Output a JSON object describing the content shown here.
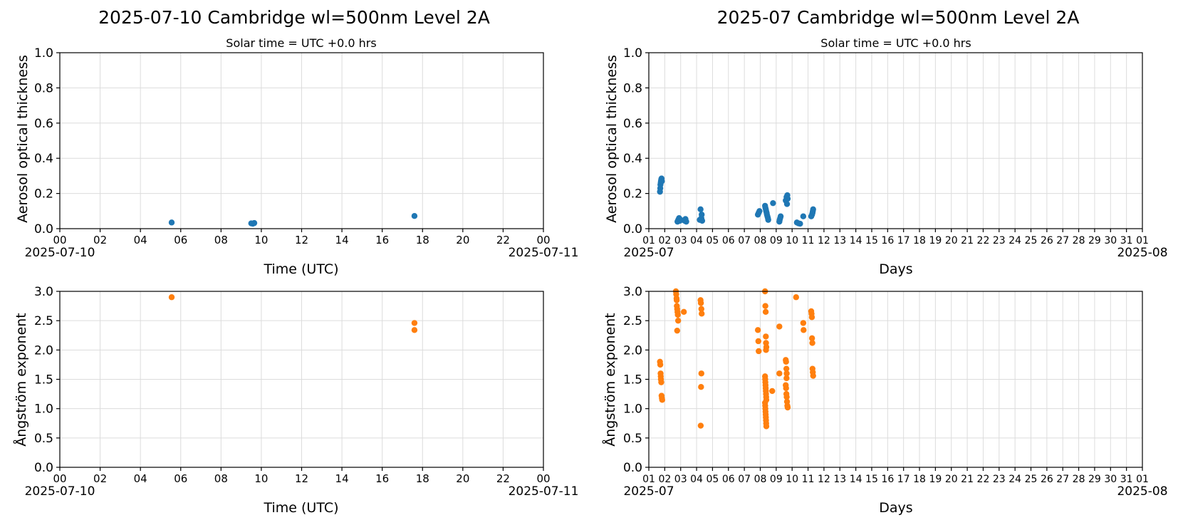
{
  "colors": {
    "aot": "#1f77b4",
    "angstrom": "#ff7f0e",
    "grid": "#dcdcdc"
  },
  "chart_data": [
    {
      "id": "day-aot",
      "type": "scatter",
      "title": "2025-07-10  Cambridge  wl=500nm  Level 2A",
      "subtitle": "Solar time = UTC +0.0 hrs",
      "xlabel": "Time (UTC)",
      "ylabel": "Aerosol optical thickness",
      "xlim": [
        0,
        24
      ],
      "ylim": [
        0,
        1.0
      ],
      "yticks": [
        "0.0",
        "0.2",
        "0.4",
        "0.6",
        "0.8",
        "1.0"
      ],
      "xticks": [
        {
          "value": 0,
          "label": "00",
          "sub": "2025-07-10"
        },
        {
          "value": 2,
          "label": "02"
        },
        {
          "value": 4,
          "label": "04"
        },
        {
          "value": 6,
          "label": "06"
        },
        {
          "value": 8,
          "label": "08"
        },
        {
          "value": 10,
          "label": "10"
        },
        {
          "value": 12,
          "label": "12"
        },
        {
          "value": 14,
          "label": "14"
        },
        {
          "value": 16,
          "label": "16"
        },
        {
          "value": 18,
          "label": "18"
        },
        {
          "value": 20,
          "label": "20"
        },
        {
          "value": 22,
          "label": "22"
        },
        {
          "value": 24,
          "label": "00",
          "sub": "2025-07-11"
        }
      ],
      "grid": true,
      "series": [
        {
          "color": "aot",
          "points": [
            [
              5.55,
              0.035
            ],
            [
              9.5,
              0.03
            ],
            [
              9.58,
              0.028
            ],
            [
              9.65,
              0.032
            ],
            [
              17.6,
              0.072
            ]
          ]
        }
      ]
    },
    {
      "id": "month-aot",
      "type": "scatter",
      "title": "2025-07  Cambridge  wl=500nm  Level 2A",
      "subtitle": "Solar time = UTC +0.0 hrs",
      "xlabel": "Days",
      "ylabel": "Aerosol optical thickness",
      "xlim": [
        1,
        32
      ],
      "ylim": [
        0,
        1.0
      ],
      "yticks": [
        "0.0",
        "0.2",
        "0.4",
        "0.6",
        "0.8",
        "1.0"
      ],
      "xticks": [
        {
          "value": 1,
          "label": "01",
          "sub": "2025-07"
        },
        {
          "value": 2,
          "label": "02"
        },
        {
          "value": 3,
          "label": "03"
        },
        {
          "value": 4,
          "label": "04"
        },
        {
          "value": 5,
          "label": "05"
        },
        {
          "value": 6,
          "label": "06"
        },
        {
          "value": 7,
          "label": "07"
        },
        {
          "value": 8,
          "label": "08"
        },
        {
          "value": 9,
          "label": "09"
        },
        {
          "value": 10,
          "label": "10"
        },
        {
          "value": 11,
          "label": "11"
        },
        {
          "value": 12,
          "label": "12"
        },
        {
          "value": 13,
          "label": "13"
        },
        {
          "value": 14,
          "label": "14"
        },
        {
          "value": 15,
          "label": "15"
        },
        {
          "value": 16,
          "label": "16"
        },
        {
          "value": 17,
          "label": "17"
        },
        {
          "value": 18,
          "label": "18"
        },
        {
          "value": 19,
          "label": "19"
        },
        {
          "value": 20,
          "label": "20"
        },
        {
          "value": 21,
          "label": "21"
        },
        {
          "value": 22,
          "label": "22"
        },
        {
          "value": 23,
          "label": "23"
        },
        {
          "value": 24,
          "label": "24"
        },
        {
          "value": 25,
          "label": "25"
        },
        {
          "value": 26,
          "label": "26"
        },
        {
          "value": 27,
          "label": "27"
        },
        {
          "value": 28,
          "label": "28"
        },
        {
          "value": 29,
          "label": "29"
        },
        {
          "value": 30,
          "label": "30"
        },
        {
          "value": 31,
          "label": "31"
        },
        {
          "value": 32,
          "label": "01",
          "sub": "2025-08"
        }
      ],
      "grid": true,
      "series": [
        {
          "color": "aot",
          "points": [
            [
              1.7,
              0.21
            ],
            [
              1.72,
              0.23
            ],
            [
              1.73,
              0.25
            ],
            [
              1.75,
              0.26
            ],
            [
              1.76,
              0.27
            ],
            [
              1.78,
              0.28
            ],
            [
              1.8,
              0.285
            ],
            [
              1.82,
              0.27
            ],
            [
              2.8,
              0.04
            ],
            [
              2.85,
              0.05
            ],
            [
              2.9,
              0.06
            ],
            [
              2.95,
              0.045
            ],
            [
              3.0,
              0.05
            ],
            [
              3.25,
              0.045
            ],
            [
              3.3,
              0.055
            ],
            [
              3.35,
              0.04
            ],
            [
              4.2,
              0.05
            ],
            [
              4.25,
              0.11
            ],
            [
              4.3,
              0.06
            ],
            [
              4.32,
              0.08
            ],
            [
              4.35,
              0.045
            ],
            [
              7.85,
              0.08
            ],
            [
              7.9,
              0.09
            ],
            [
              7.95,
              0.1
            ],
            [
              8.3,
              0.13
            ],
            [
              8.32,
              0.12
            ],
            [
              8.35,
              0.11
            ],
            [
              8.37,
              0.1
            ],
            [
              8.4,
              0.09
            ],
            [
              8.42,
              0.08
            ],
            [
              8.45,
              0.07
            ],
            [
              8.48,
              0.06
            ],
            [
              8.5,
              0.05
            ],
            [
              8.8,
              0.145
            ],
            [
              9.2,
              0.04
            ],
            [
              9.22,
              0.05
            ],
            [
              9.25,
              0.06
            ],
            [
              9.28,
              0.07
            ],
            [
              9.6,
              0.16
            ],
            [
              9.65,
              0.18
            ],
            [
              9.7,
              0.19
            ],
            [
              9.72,
              0.17
            ],
            [
              9.68,
              0.14
            ],
            [
              10.3,
              0.035
            ],
            [
              10.4,
              0.03
            ],
            [
              10.5,
              0.028
            ],
            [
              10.7,
              0.07
            ],
            [
              11.2,
              0.07
            ],
            [
              11.25,
              0.08
            ],
            [
              11.28,
              0.09
            ],
            [
              11.3,
              0.1
            ],
            [
              11.32,
              0.11
            ]
          ]
        }
      ]
    },
    {
      "id": "day-angstrom",
      "type": "scatter",
      "xlabel": "Time (UTC)",
      "ylabel": "Ångström exponent",
      "xlim": [
        0,
        24
      ],
      "ylim": [
        0,
        3.0
      ],
      "yticks": [
        "0.0",
        "0.5",
        "1.0",
        "1.5",
        "2.0",
        "2.5",
        "3.0"
      ],
      "xticks": [
        {
          "value": 0,
          "label": "00",
          "sub": "2025-07-10"
        },
        {
          "value": 2,
          "label": "02"
        },
        {
          "value": 4,
          "label": "04"
        },
        {
          "value": 6,
          "label": "06"
        },
        {
          "value": 8,
          "label": "08"
        },
        {
          "value": 10,
          "label": "10"
        },
        {
          "value": 12,
          "label": "12"
        },
        {
          "value": 14,
          "label": "14"
        },
        {
          "value": 16,
          "label": "16"
        },
        {
          "value": 18,
          "label": "18"
        },
        {
          "value": 20,
          "label": "20"
        },
        {
          "value": 22,
          "label": "22"
        },
        {
          "value": 24,
          "label": "00",
          "sub": "2025-07-11"
        }
      ],
      "grid": true,
      "series": [
        {
          "color": "angstrom",
          "points": [
            [
              5.55,
              2.9
            ],
            [
              17.6,
              2.46
            ],
            [
              17.6,
              2.34
            ]
          ]
        }
      ]
    },
    {
      "id": "month-angstrom",
      "type": "scatter",
      "xlabel": "Days",
      "ylabel": "Ångström exponent",
      "xlim": [
        1,
        32
      ],
      "ylim": [
        0,
        3.0
      ],
      "yticks": [
        "0.0",
        "0.5",
        "1.0",
        "1.5",
        "2.0",
        "2.5",
        "3.0"
      ],
      "xticks": [
        {
          "value": 1,
          "label": "01",
          "sub": "2025-07"
        },
        {
          "value": 2,
          "label": "02"
        },
        {
          "value": 3,
          "label": "03"
        },
        {
          "value": 4,
          "label": "04"
        },
        {
          "value": 5,
          "label": "05"
        },
        {
          "value": 6,
          "label": "06"
        },
        {
          "value": 7,
          "label": "07"
        },
        {
          "value": 8,
          "label": "08"
        },
        {
          "value": 9,
          "label": "09"
        },
        {
          "value": 10,
          "label": "10"
        },
        {
          "value": 11,
          "label": "11"
        },
        {
          "value": 12,
          "label": "12"
        },
        {
          "value": 13,
          "label": "13"
        },
        {
          "value": 14,
          "label": "14"
        },
        {
          "value": 15,
          "label": "15"
        },
        {
          "value": 16,
          "label": "16"
        },
        {
          "value": 17,
          "label": "17"
        },
        {
          "value": 18,
          "label": "18"
        },
        {
          "value": 19,
          "label": "19"
        },
        {
          "value": 20,
          "label": "20"
        },
        {
          "value": 21,
          "label": "21"
        },
        {
          "value": 22,
          "label": "22"
        },
        {
          "value": 23,
          "label": "23"
        },
        {
          "value": 24,
          "label": "24"
        },
        {
          "value": 25,
          "label": "25"
        },
        {
          "value": 26,
          "label": "26"
        },
        {
          "value": 27,
          "label": "27"
        },
        {
          "value": 28,
          "label": "28"
        },
        {
          "value": 29,
          "label": "29"
        },
        {
          "value": 30,
          "label": "30"
        },
        {
          "value": 31,
          "label": "31"
        },
        {
          "value": 32,
          "label": "01",
          "sub": "2025-08"
        }
      ],
      "grid": true,
      "series": [
        {
          "color": "angstrom",
          "points": [
            [
              1.7,
              1.8
            ],
            [
              1.72,
              1.75
            ],
            [
              1.74,
              1.6
            ],
            [
              1.75,
              1.55
            ],
            [
              1.76,
              1.5
            ],
            [
              1.78,
              1.45
            ],
            [
              1.8,
              1.22
            ],
            [
              1.82,
              1.18
            ],
            [
              1.84,
              1.15
            ],
            [
              2.7,
              3.0
            ],
            [
              2.72,
              2.95
            ],
            [
              2.74,
              2.88
            ],
            [
              2.75,
              2.85
            ],
            [
              2.76,
              2.75
            ],
            [
              2.78,
              2.7
            ],
            [
              2.8,
              2.65
            ],
            [
              2.82,
              2.6
            ],
            [
              2.84,
              2.5
            ],
            [
              2.78,
              2.33
            ],
            [
              3.2,
              2.65
            ],
            [
              4.25,
              2.85
            ],
            [
              4.27,
              2.8
            ],
            [
              4.3,
              2.7
            ],
            [
              4.32,
              2.62
            ],
            [
              4.3,
              1.6
            ],
            [
              4.28,
              1.37
            ],
            [
              4.26,
              0.71
            ],
            [
              7.85,
              2.34
            ],
            [
              7.88,
              2.15
            ],
            [
              7.9,
              1.98
            ],
            [
              8.3,
              3.0
            ],
            [
              8.32,
              2.75
            ],
            [
              8.34,
              2.65
            ],
            [
              8.35,
              2.23
            ],
            [
              8.36,
              2.12
            ],
            [
              8.38,
              2.05
            ],
            [
              8.36,
              2.0
            ],
            [
              8.3,
              1.55
            ],
            [
              8.31,
              1.5
            ],
            [
              8.32,
              1.45
            ],
            [
              8.33,
              1.4
            ],
            [
              8.34,
              1.35
            ],
            [
              8.35,
              1.3
            ],
            [
              8.36,
              1.25
            ],
            [
              8.37,
              1.2
            ],
            [
              8.38,
              1.15
            ],
            [
              8.3,
              1.1
            ],
            [
              8.31,
              1.05
            ],
            [
              8.32,
              1.0
            ],
            [
              8.33,
              0.95
            ],
            [
              8.34,
              0.9
            ],
            [
              8.35,
              0.85
            ],
            [
              8.36,
              0.8
            ],
            [
              8.37,
              0.75
            ],
            [
              8.38,
              0.7
            ],
            [
              8.75,
              1.3
            ],
            [
              9.2,
              2.4
            ],
            [
              9.2,
              1.6
            ],
            [
              9.6,
              1.83
            ],
            [
              9.62,
              1.8
            ],
            [
              9.64,
              1.68
            ],
            [
              9.66,
              1.6
            ],
            [
              9.65,
              1.52
            ],
            [
              9.6,
              1.4
            ],
            [
              9.62,
              1.35
            ],
            [
              9.64,
              1.25
            ],
            [
              9.66,
              1.2
            ],
            [
              9.68,
              1.12
            ],
            [
              9.7,
              1.05
            ],
            [
              9.72,
              1.02
            ],
            [
              10.25,
              2.9
            ],
            [
              10.7,
              2.46
            ],
            [
              10.72,
              2.34
            ],
            [
              11.2,
              2.66
            ],
            [
              11.22,
              2.62
            ],
            [
              11.24,
              2.56
            ],
            [
              11.25,
              2.2
            ],
            [
              11.27,
              2.12
            ],
            [
              11.28,
              1.68
            ],
            [
              11.3,
              1.62
            ],
            [
              11.32,
              1.56
            ]
          ]
        }
      ]
    }
  ]
}
